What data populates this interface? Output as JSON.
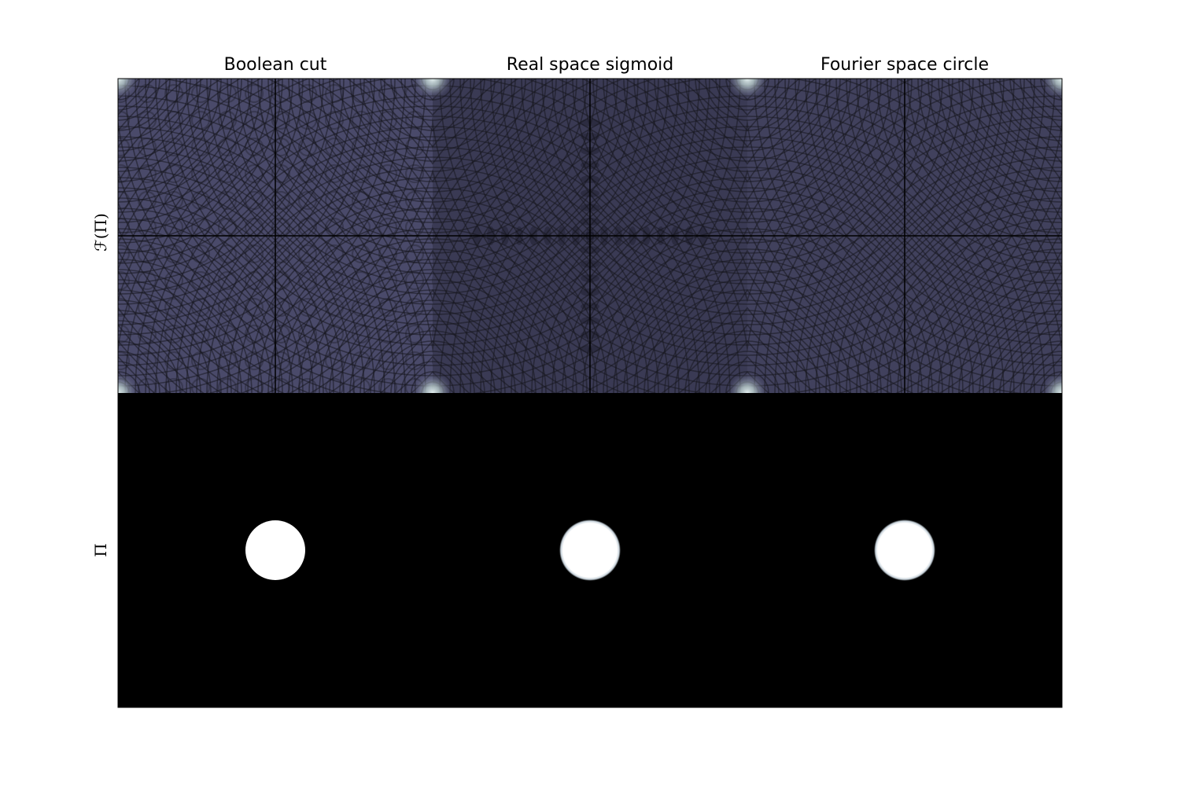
{
  "figure": {
    "columns": [
      {
        "title": "Boolean cut",
        "edge": "hard"
      },
      {
        "title": "Real space sigmoid",
        "edge": "soft"
      },
      {
        "title": "Fourier space circle",
        "edge": "soft"
      }
    ],
    "rows": [
      {
        "label": "ℱ(Π)",
        "content": "fourier-magnitude"
      },
      {
        "label": "Π",
        "content": "real-space-disk"
      }
    ],
    "colors": {
      "fourier_base": "#4a4a6a",
      "fourier_dark": "#1e1e2c",
      "fourier_highlight": "#d6e6e6",
      "real_background": "#000000",
      "disk_fill": "#ffffff",
      "disk_edge": "#9fb0c0",
      "axis_line": "#000000"
    }
  }
}
